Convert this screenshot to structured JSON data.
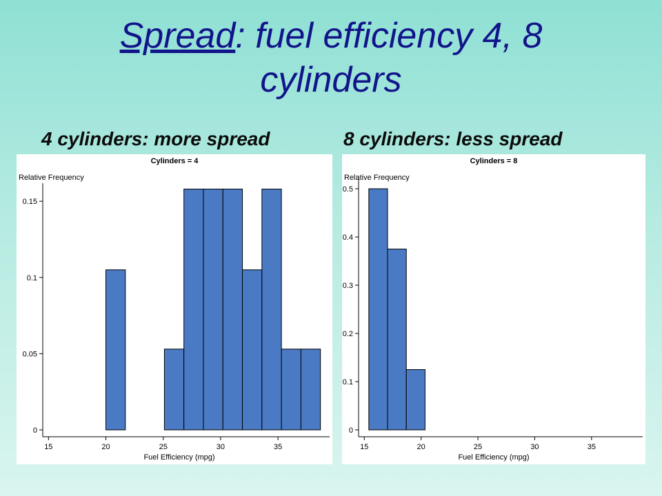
{
  "slide": {
    "title_underlined": "Spread",
    "title_rest": ": fuel efficiency 4, 8",
    "title_line2": "cylinders",
    "subtitle_left": "4 cylinders: more spread",
    "subtitle_right": "8 cylinders: less spread",
    "colors": {
      "title": "#12148a",
      "bar": "#4a7ac4",
      "background": "#b6ebe1"
    }
  },
  "chart_data": [
    {
      "type": "bar",
      "title": "Cylinders = 4",
      "xlabel": "Fuel Efficiency (mpg)",
      "ylabel": "Relative Frequency",
      "xlim": [
        14.5,
        39.5
      ],
      "ylim": [
        0,
        0.16
      ],
      "xticks": [
        15,
        20,
        25,
        30,
        35
      ],
      "xtick_labels": [
        "15",
        "20",
        "25",
        "30",
        "35"
      ],
      "yticks": [
        0,
        0.05,
        0.1,
        0.15
      ],
      "ytick_labels": [
        "0",
        "0.05",
        "0.1",
        "0.15"
      ],
      "bin_width": 1.7,
      "bins": [
        {
          "start": 20.0,
          "value": 0.105
        },
        {
          "start": 25.1,
          "value": 0.053
        },
        {
          "start": 26.8,
          "value": 0.158
        },
        {
          "start": 28.5,
          "value": 0.158
        },
        {
          "start": 30.2,
          "value": 0.158
        },
        {
          "start": 31.9,
          "value": 0.105
        },
        {
          "start": 33.6,
          "value": 0.158
        },
        {
          "start": 35.3,
          "value": 0.053
        },
        {
          "start": 37.0,
          "value": 0.053
        }
      ]
    },
    {
      "type": "bar",
      "title": "Cylinders = 8",
      "xlabel": "Fuel Efficiency (mpg)",
      "ylabel": "Relative Frequency",
      "xlim": [
        14.5,
        39.5
      ],
      "ylim": [
        0,
        0.52
      ],
      "xticks": [
        15,
        20,
        25,
        30,
        35
      ],
      "xtick_labels": [
        "15",
        "20",
        "25",
        "30",
        "35"
      ],
      "yticks": [
        0,
        0.1,
        0.2,
        0.3,
        0.4,
        0.5
      ],
      "ytick_labels": [
        "0",
        "0.1",
        "0.2",
        "0.3",
        "0.4",
        "0.5"
      ],
      "bin_width": 1.65,
      "bins": [
        {
          "start": 15.4,
          "value": 0.5
        },
        {
          "start": 17.05,
          "value": 0.375
        },
        {
          "start": 18.7,
          "value": 0.125
        }
      ]
    }
  ]
}
